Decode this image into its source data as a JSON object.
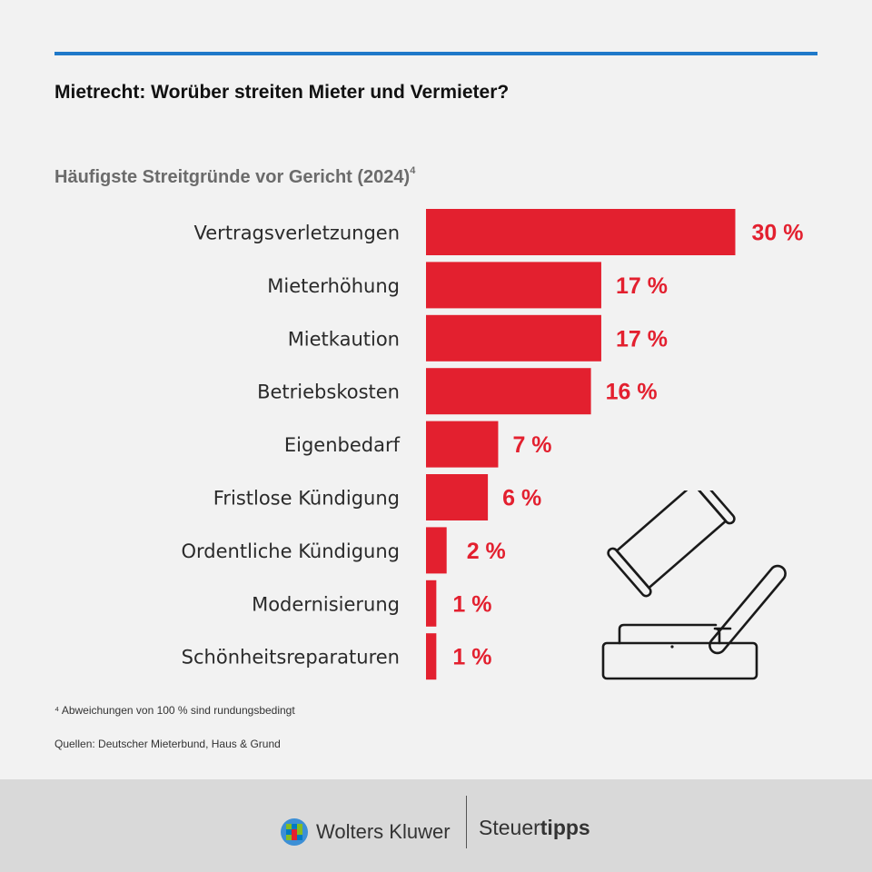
{
  "header": {
    "title": "Mietrecht: Worüber streiten Mieter und Vermieter?",
    "accent_color": "#1f79c9"
  },
  "chart_data": {
    "type": "bar",
    "orientation": "horizontal",
    "title": "Häufigste Streitgründe vor Gericht (2024)",
    "title_footnote_marker": "4",
    "categories": [
      "Vertragsverletzungen",
      "Mieterhöhung",
      "Mietkaution",
      "Betriebskosten",
      "Eigenbedarf",
      "Fristlose Kündigung",
      "Ordentliche Kündigung",
      "Modernisierung",
      "Schönheitsreparaturen"
    ],
    "values": [
      30,
      17,
      17,
      16,
      7,
      6,
      2,
      1,
      1
    ],
    "value_labels": [
      "30 %",
      "17 %",
      "17 %",
      "16 %",
      "7 %",
      "6 %",
      "2 %",
      "1 %",
      "1 %"
    ],
    "unit": "%",
    "bar_color": "#e3202f",
    "label_color": "#e3202f",
    "grid": false,
    "legend": "none"
  },
  "illustration": {
    "icon": "gavel-icon"
  },
  "notes": {
    "footnote": "⁴ Abweichungen von 100 % sind rundungsbedingt",
    "sources": "Quellen: Deutscher Mieterbund, Haus & Grund"
  },
  "footer": {
    "brand": "Wolters Kluwer",
    "partner_regular": "Steuer",
    "partner_bold": "tipps",
    "background": "#d9d9d9"
  }
}
